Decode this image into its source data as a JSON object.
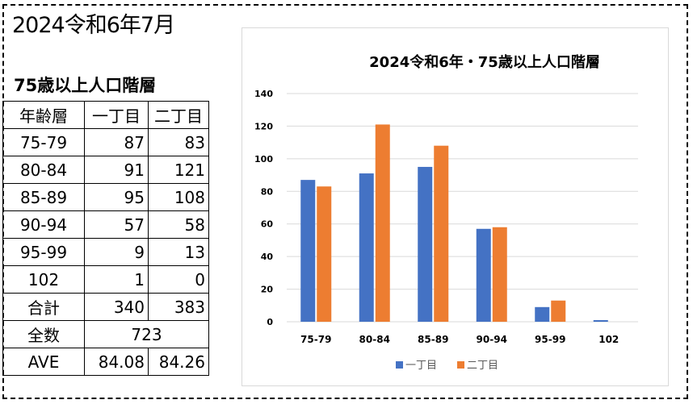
{
  "page_title": "2024令和6年7月",
  "table": {
    "title": "75歳以上人口階層",
    "headers": [
      "年齢層",
      "一丁目",
      "二丁目"
    ],
    "rows": [
      [
        "75-79",
        "87",
        "83"
      ],
      [
        "80-84",
        "91",
        "121"
      ],
      [
        "85-89",
        "95",
        "108"
      ],
      [
        "90-94",
        "57",
        "58"
      ],
      [
        "95-99",
        "9",
        "13"
      ],
      [
        "102",
        "1",
        "0"
      ],
      [
        "合計",
        "340",
        "383"
      ]
    ],
    "total_label": "全数",
    "total_value": "723",
    "ave_label": "AVE",
    "ave_values": [
      "84.08",
      "84.26"
    ]
  },
  "chart_data": {
    "type": "bar",
    "title": "2024令和6年・75歳以上人口階層",
    "categories": [
      "75-79",
      "80-84",
      "85-89",
      "90-94",
      "95-99",
      "102"
    ],
    "series": [
      {
        "name": "一丁目",
        "values": [
          87,
          91,
          95,
          57,
          9,
          1
        ],
        "color": "#4472C4"
      },
      {
        "name": "二丁目",
        "values": [
          83,
          121,
          108,
          58,
          13,
          0
        ],
        "color": "#ED7D31"
      }
    ],
    "ylim": [
      0,
      140
    ],
    "yticks": [
      0,
      20,
      40,
      60,
      80,
      100,
      120,
      140
    ],
    "grid": true,
    "legend_position": "bottom"
  }
}
